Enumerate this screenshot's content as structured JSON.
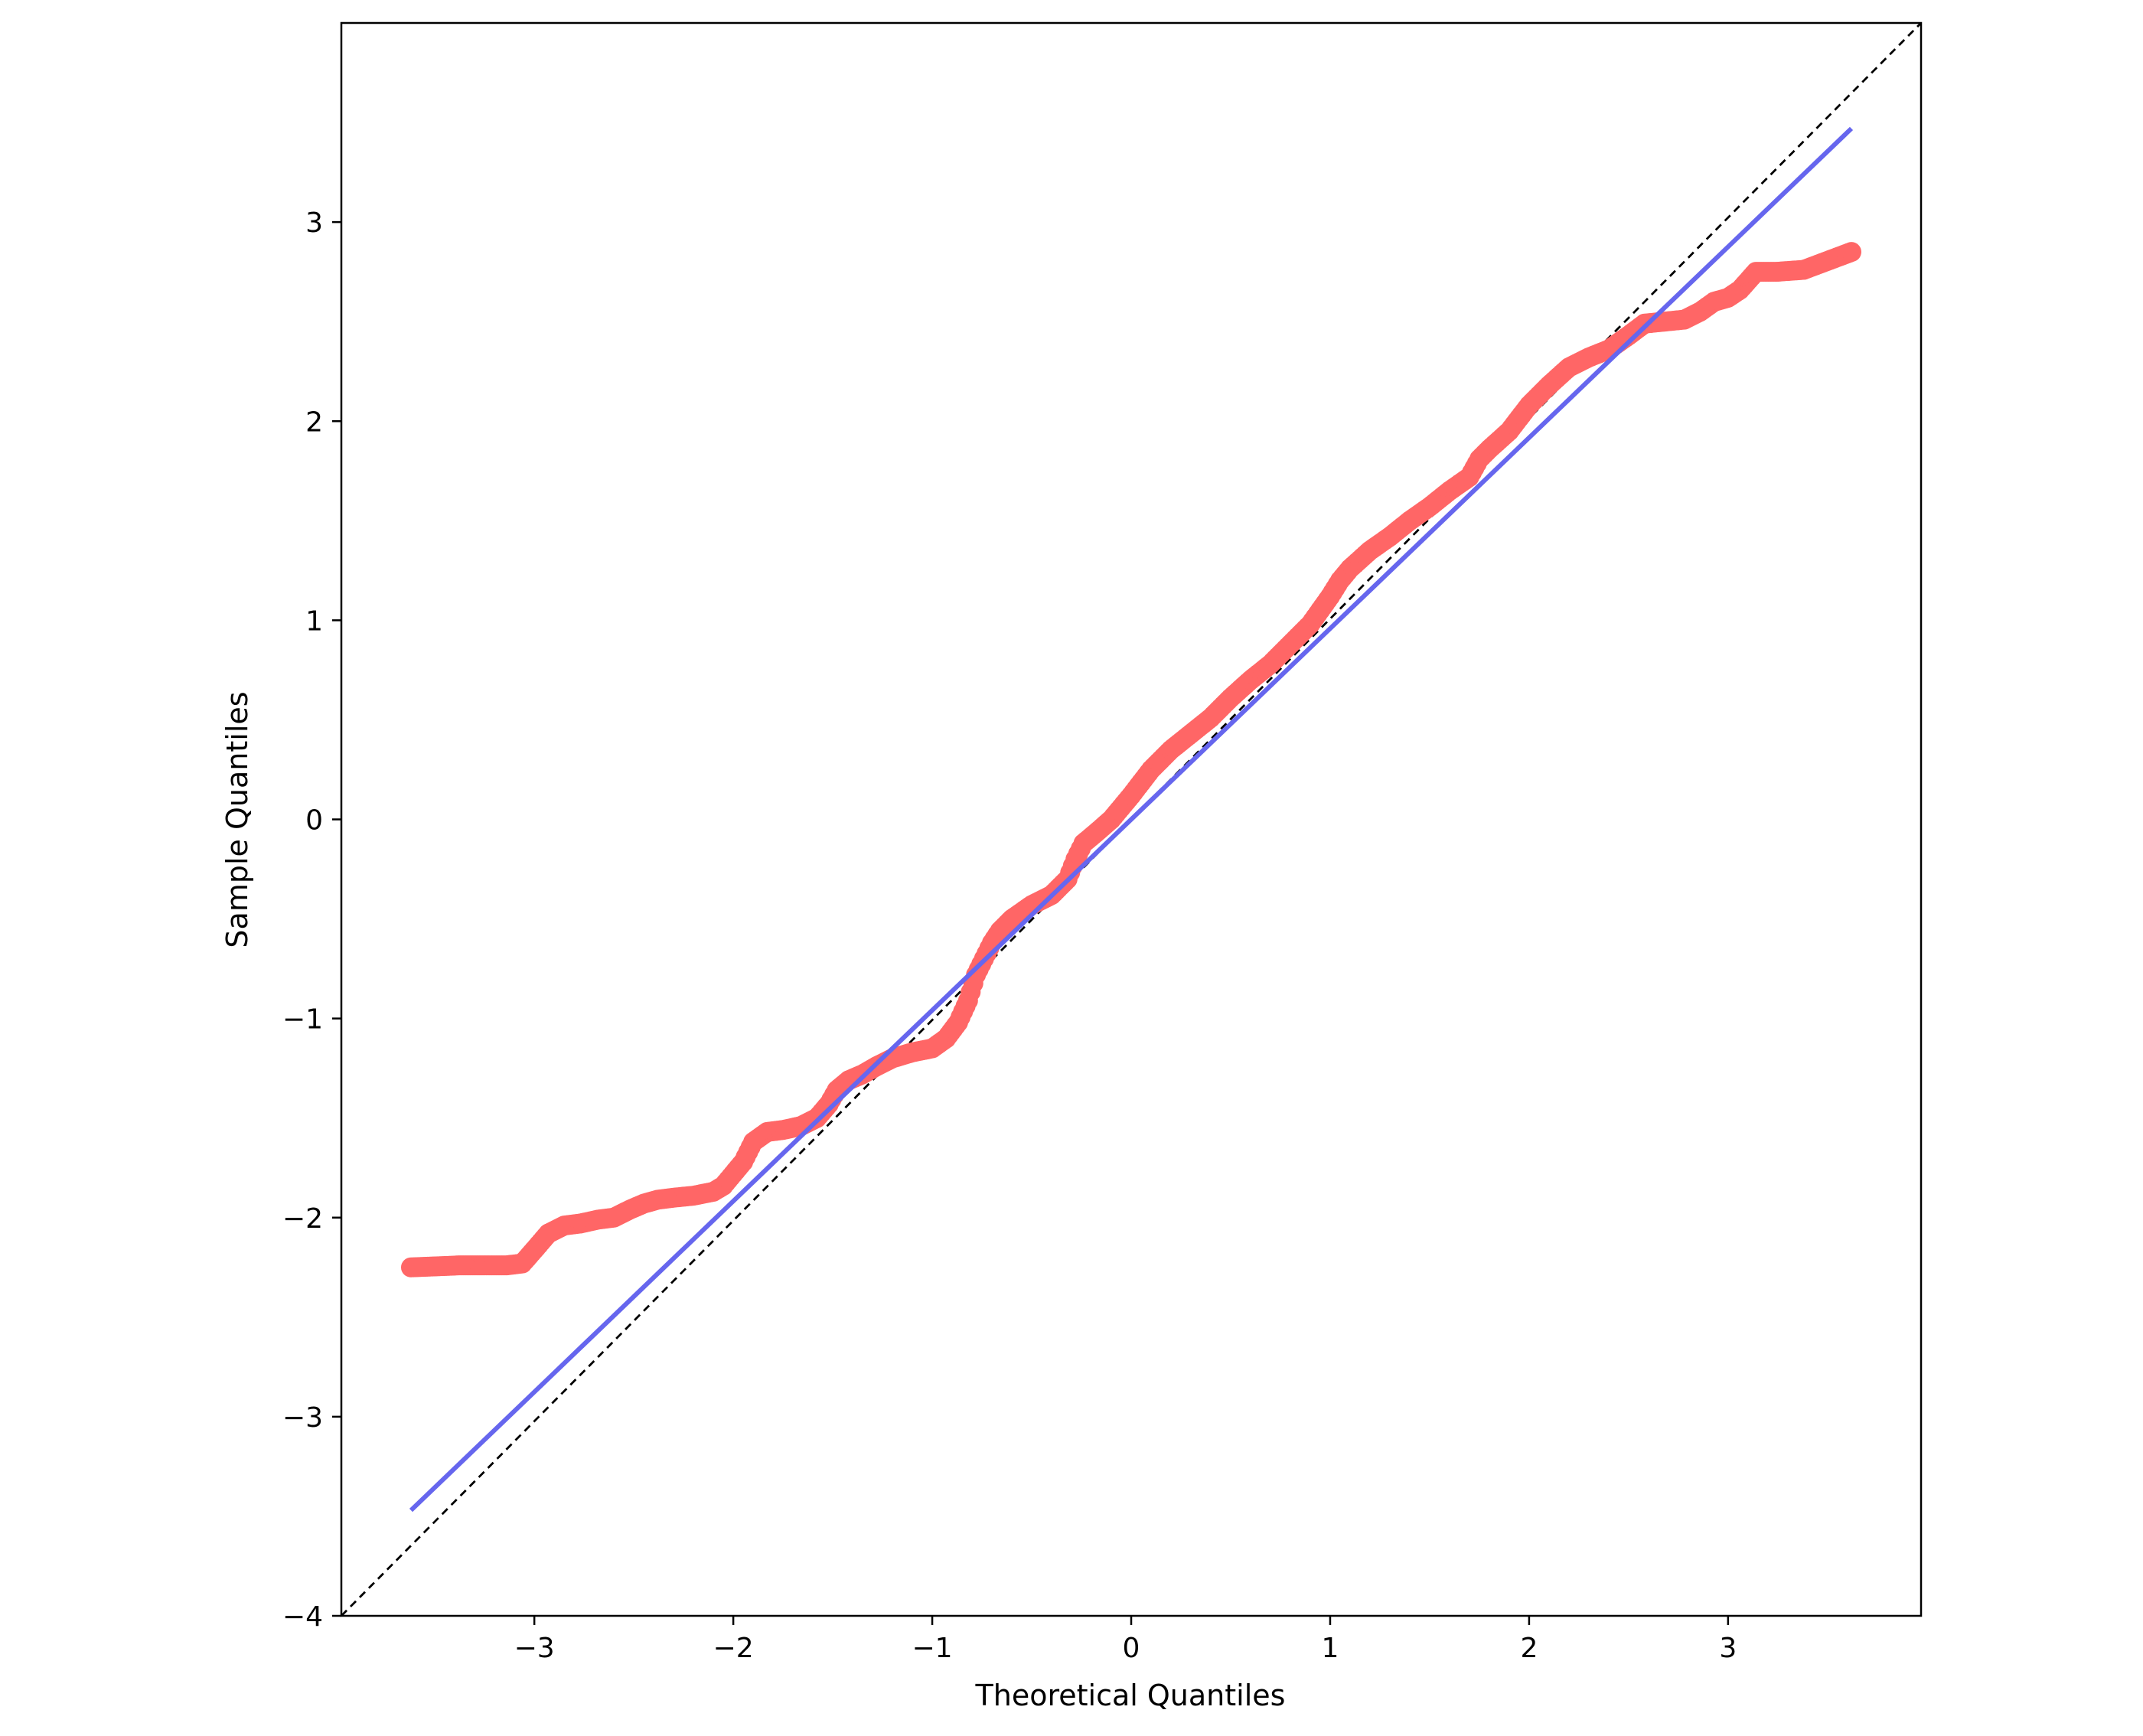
{
  "chart_data": {
    "type": "scatter",
    "title": "",
    "xlabel": "Theoretical Quantiles",
    "ylabel": "Sample Quantiles",
    "xlim": [
      -3.97,
      3.97
    ],
    "ylim": [
      -4.0,
      4.0
    ],
    "x_ticks": [
      -3,
      -2,
      -1,
      0,
      1,
      2,
      3
    ],
    "x_tick_labels": [
      "−3",
      "−2",
      "−1",
      "0",
      "1",
      "2",
      "3"
    ],
    "y_ticks": [
      -4,
      -3,
      -2,
      -1,
      0,
      1,
      2,
      3
    ],
    "y_tick_labels": [
      "−4",
      "−3",
      "−2",
      "−1",
      "0",
      "1",
      "2",
      "3"
    ],
    "grid": false,
    "legend": "none",
    "colors": {
      "points": "#ff6666",
      "fit_line": "#6666ee",
      "reference_line": "#000000"
    },
    "reference_line": {
      "style": "dashed",
      "points": [
        [
          -3.97,
          -4.0
        ],
        [
          3.97,
          4.0
        ]
      ]
    },
    "fit_line": {
      "points": [
        [
          -3.62,
          -3.47
        ],
        [
          3.62,
          3.47
        ]
      ]
    },
    "sample_count": 500,
    "series": [
      {
        "x": [
          -3.62,
          -3.38,
          -3.24,
          -3.14,
          -3.06,
          -2.99,
          -2.93,
          -2.85,
          -2.77,
          -2.68,
          -2.6,
          -2.52,
          -2.45,
          -2.38,
          -2.3,
          -2.2,
          -2.1,
          -2.05,
          -2.0,
          -1.95,
          -1.9,
          -1.83,
          -1.75,
          -1.66,
          -1.58,
          -1.52,
          -1.48,
          -1.42,
          -1.35,
          -1.28,
          -1.2,
          -1.1,
          -1.0,
          -0.93,
          -0.87,
          -0.82,
          -0.78,
          -0.74,
          -0.7,
          -0.66,
          -0.6,
          -0.5,
          -0.4,
          -0.32,
          -0.28,
          -0.24,
          -0.18,
          -0.1,
          0.0,
          0.1,
          0.2,
          0.3,
          0.4,
          0.5,
          0.6,
          0.7,
          0.8,
          0.9,
          1.0,
          1.05,
          1.1,
          1.2,
          1.3,
          1.4,
          1.5,
          1.6,
          1.7,
          1.75,
          1.8,
          1.9,
          2.0,
          2.1,
          2.2,
          2.3,
          2.4,
          2.5,
          2.58,
          2.68,
          2.78,
          2.86,
          2.93,
          3.0,
          3.06,
          3.14,
          3.24,
          3.38,
          3.62
        ],
        "y": [
          -2.25,
          -2.24,
          -2.24,
          -2.24,
          -2.23,
          -2.15,
          -2.08,
          -2.04,
          -2.03,
          -2.01,
          -2.0,
          -1.96,
          -1.93,
          -1.91,
          -1.9,
          -1.89,
          -1.87,
          -1.84,
          -1.78,
          -1.72,
          -1.62,
          -1.57,
          -1.56,
          -1.54,
          -1.5,
          -1.43,
          -1.36,
          -1.31,
          -1.28,
          -1.24,
          -1.2,
          -1.17,
          -1.15,
          -1.1,
          -1.02,
          -0.91,
          -0.78,
          -0.7,
          -0.62,
          -0.56,
          -0.5,
          -0.43,
          -0.38,
          -0.3,
          -0.2,
          -0.12,
          -0.07,
          0.0,
          0.12,
          0.25,
          0.35,
          0.43,
          0.51,
          0.61,
          0.7,
          0.78,
          0.88,
          0.98,
          1.12,
          1.2,
          1.26,
          1.35,
          1.42,
          1.5,
          1.57,
          1.65,
          1.72,
          1.81,
          1.86,
          1.95,
          2.08,
          2.18,
          2.27,
          2.32,
          2.36,
          2.43,
          2.49,
          2.5,
          2.51,
          2.55,
          2.6,
          2.62,
          2.66,
          2.75,
          2.75,
          2.76,
          2.85
        ]
      }
    ]
  }
}
